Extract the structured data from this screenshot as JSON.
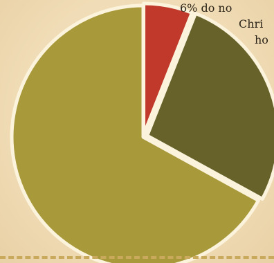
{
  "chart_data": {
    "type": "pie",
    "title": "",
    "slices": [
      {
        "value": 6,
        "color": "#c0392b"
      },
      {
        "value": 27,
        "color": "#66622a"
      },
      {
        "value": 67,
        "color": "#a8993a"
      }
    ]
  },
  "caption": {
    "line1": "6% do no",
    "line2": "Chri",
    "line3": "ho"
  }
}
